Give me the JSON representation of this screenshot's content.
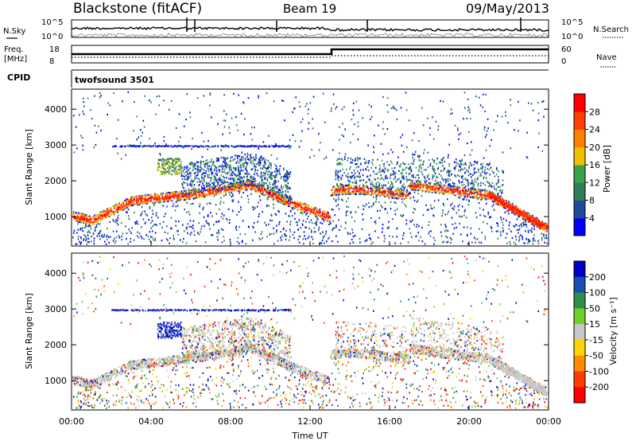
{
  "header": {
    "station": "Blackstone (fitACF)",
    "beam": "Beam 19",
    "date": "09/May/2013"
  },
  "nsky_panel": {
    "left_label": "N.Sky",
    "right_label": "N.Search",
    "left_ticks": [
      "10^5",
      "10^0"
    ],
    "right_ticks": [
      "10^5",
      "10^0"
    ]
  },
  "freq_panel": {
    "left_label_1": "Freq.",
    "left_label_2": "[MHz]",
    "right_label": "Nave",
    "left_ticks": [
      "18",
      "8"
    ],
    "right_ticks": [
      "60",
      "0"
    ]
  },
  "cpid": {
    "label": "CPID",
    "value": "twofsound 3501"
  },
  "colors": {
    "power_scale": [
      "#0000ff",
      "#1e4a9a",
      "#2e7f5a",
      "#3aa14a",
      "#f0c000",
      "#ff8000",
      "#ff4000",
      "#ff0000"
    ],
    "velocity_scale": [
      "#0000c8",
      "#1a4fb0",
      "#2f8f4a",
      "#6fcf2f",
      "#c8c8c8",
      "#ffd400",
      "#ff8c00",
      "#ff3c00",
      "#ff0000"
    ]
  },
  "chart_data": [
    {
      "type": "heatmap",
      "name": "power",
      "ylabel": "Slant Range [km]",
      "x_range": [
        0,
        24
      ],
      "y_range": [
        180,
        4560
      ],
      "y_ticks": [
        "1000",
        "2000",
        "3000",
        "4000"
      ],
      "colorbar_label": "Power [dB]",
      "colorbar_ticks": [
        "4",
        "8",
        "12",
        "16",
        "20",
        "24",
        "28"
      ],
      "colorbar_range": [
        0,
        32
      ]
    },
    {
      "type": "heatmap",
      "name": "velocity",
      "ylabel": "Slant Range [km]",
      "xlabel": "Time UT",
      "x_range": [
        0,
        24
      ],
      "y_range": [
        180,
        4560
      ],
      "x_ticks": [
        "00:00",
        "04:00",
        "08:00",
        "12:00",
        "16:00",
        "20:00",
        "00:00"
      ],
      "y_ticks": [
        "1000",
        "2000",
        "3000",
        "4000"
      ],
      "colorbar_label": "Velocity [m s⁻¹]",
      "colorbar_ticks": [
        "200",
        "100",
        "50",
        "15",
        "-15",
        "-50",
        "-100",
        "-200"
      ]
    }
  ]
}
